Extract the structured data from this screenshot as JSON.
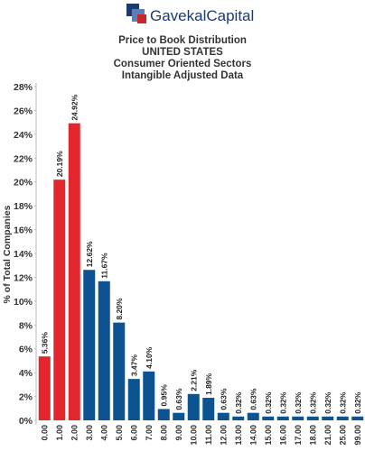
{
  "chart_data": {
    "type": "bar",
    "logo": "GavekalCapital",
    "title": "Price to Book Distribution",
    "subtitles": [
      "UNITED STATES",
      "Consumer Oriented Sectors",
      "Intangible Adjusted Data"
    ],
    "y_label": "% of Total Companies",
    "categories": [
      "0.00",
      "1.00",
      "2.00",
      "3.00",
      "4.00",
      "5.00",
      "6.00",
      "7.00",
      "8.00",
      "9.00",
      "10.00",
      "11.00",
      "12.00",
      "13.00",
      "14.00",
      "15.00",
      "16.00",
      "17.00",
      "18.00",
      "21.00",
      "25.00",
      "99.00"
    ],
    "values": [
      5.36,
      20.19,
      24.92,
      12.62,
      11.67,
      8.2,
      3.47,
      4.1,
      0.95,
      0.63,
      2.21,
      1.89,
      0.63,
      0.32,
      0.63,
      0.32,
      0.32,
      0.32,
      0.32,
      0.32,
      0.32,
      0.32
    ],
    "value_labels": [
      "5.36%",
      "20.19%",
      "24.92%",
      "12.62%",
      "11.67%",
      "8.20%",
      "3.47%",
      "4.10%",
      "0.95%",
      "0.63%",
      "2.21%",
      "1.89%",
      "0.63%",
      "0.32%",
      "0.63%",
      "0.32%",
      "0.32%",
      "0.32%",
      "0.32%",
      "0.32%",
      "0.32%",
      "0.32%"
    ],
    "colors": [
      "#e3262d",
      "#e3262d",
      "#e3262d",
      "#0d5392",
      "#0d5392",
      "#0d5392",
      "#0d5392",
      "#0d5392",
      "#0d5392",
      "#0d5392",
      "#0d5392",
      "#0d5392",
      "#0d5392",
      "#0d5392",
      "#0d5392",
      "#0d5392",
      "#0d5392",
      "#0d5392",
      "#0d5392",
      "#0d5392",
      "#0d5392",
      "#0d5392"
    ],
    "ylim": [
      0,
      28.3
    ],
    "yticks": [
      {
        "value": 0,
        "label": "0%"
      },
      {
        "value": 2,
        "label": "2%"
      },
      {
        "value": 4,
        "label": "4%"
      },
      {
        "value": 6,
        "label": "6%"
      },
      {
        "value": 8,
        "label": "8%"
      },
      {
        "value": 10,
        "label": "10%"
      },
      {
        "value": 12,
        "label": "12%"
      },
      {
        "value": 14,
        "label": "14%"
      },
      {
        "value": 16,
        "label": "16%"
      },
      {
        "value": 18,
        "label": "18%"
      },
      {
        "value": 20,
        "label": "20%"
      },
      {
        "value": 22,
        "label": "22%"
      },
      {
        "value": 24,
        "label": "24%"
      },
      {
        "value": 26,
        "label": "26%"
      },
      {
        "value": 28,
        "label": "28%"
      }
    ]
  }
}
